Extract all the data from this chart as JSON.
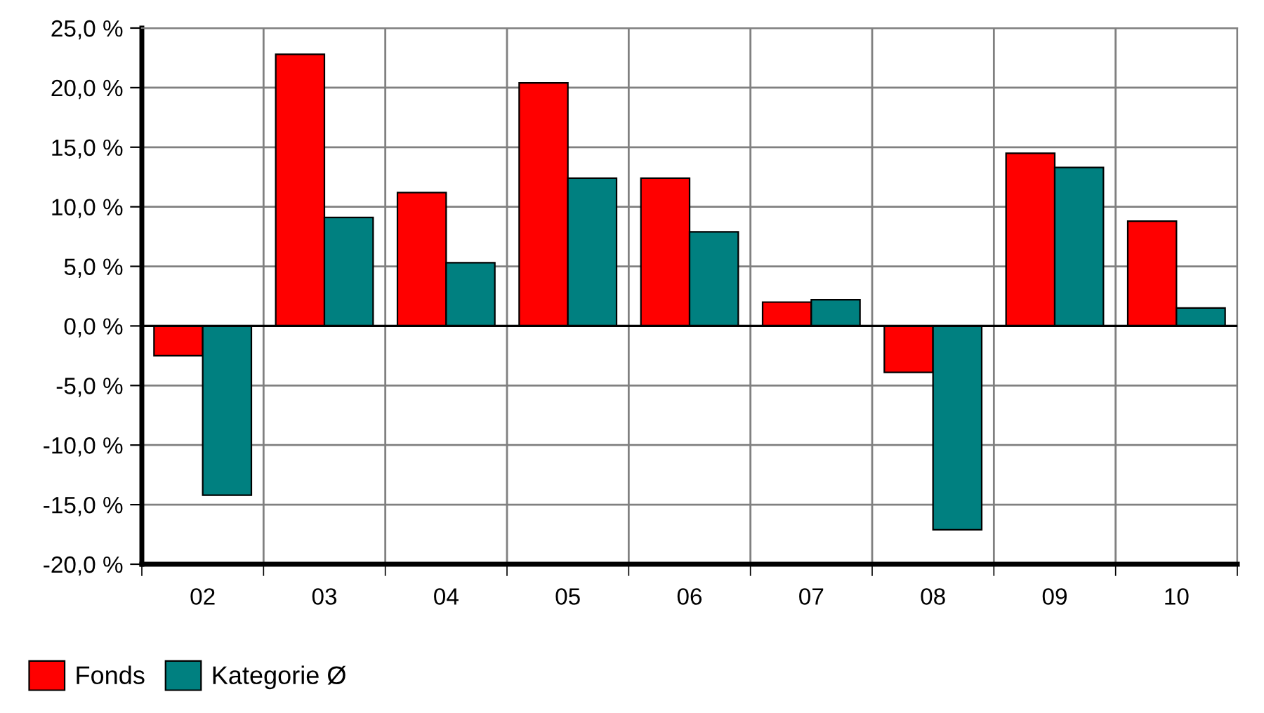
{
  "chart_data": {
    "type": "bar",
    "categories": [
      "02",
      "03",
      "04",
      "05",
      "06",
      "07",
      "08",
      "09",
      "10"
    ],
    "series": [
      {
        "name": "Fonds",
        "color": "#ff0000",
        "values": [
          -2.5,
          22.8,
          11.2,
          20.4,
          12.4,
          2.0,
          -3.9,
          14.5,
          8.8
        ]
      },
      {
        "name": "Kategorie Ø",
        "color": "#008080",
        "values": [
          -14.2,
          9.1,
          5.3,
          12.4,
          7.9,
          2.2,
          -17.1,
          13.3,
          1.5
        ]
      }
    ],
    "ylim": [
      -20,
      25
    ],
    "yticks": [
      {
        "value": -20,
        "label": "-20,0 %"
      },
      {
        "value": -15,
        "label": "-15,0 %"
      },
      {
        "value": -10,
        "label": "-10,0 %"
      },
      {
        "value": -5,
        "label": "-5,0 %"
      },
      {
        "value": 0,
        "label": "0,0 %"
      },
      {
        "value": 5,
        "label": "5,0 %"
      },
      {
        "value": 10,
        "label": "10,0 %"
      },
      {
        "value": 15,
        "label": "15,0 %"
      },
      {
        "value": 20,
        "label": "20,0 %"
      },
      {
        "value": 25,
        "label": "25,0 %"
      }
    ],
    "grid": true,
    "legend": "bottom left"
  }
}
